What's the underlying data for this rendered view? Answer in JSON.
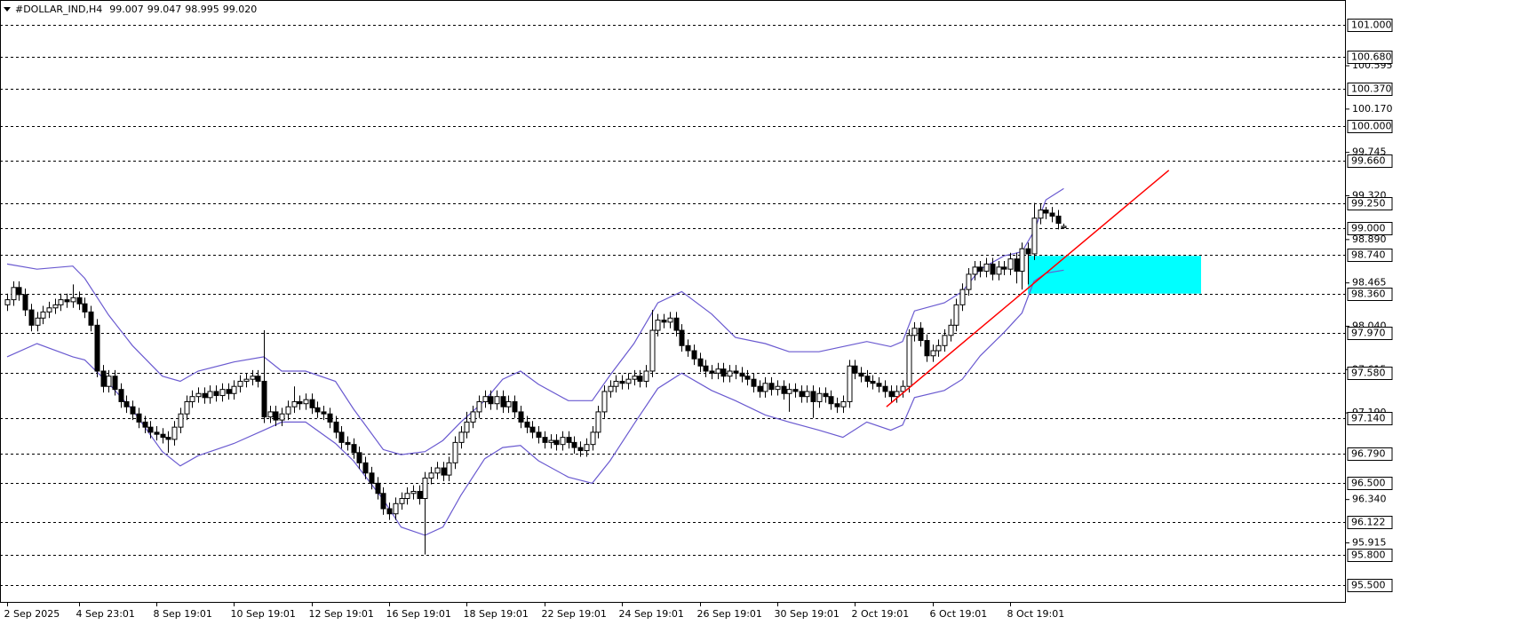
{
  "chart_data": {
    "type": "candlestick",
    "header": {
      "symbol": "#DOLLAR_IND,H4",
      "ohlc": [
        "99.007",
        "99.047",
        "98.995",
        "99.020"
      ]
    },
    "categories": [
      "2 Sep 2025",
      null,
      null,
      null,
      null,
      null,
      null,
      null,
      null,
      null,
      null,
      null,
      "4 Sep 23:01",
      null,
      null,
      null,
      null,
      null,
      null,
      null,
      null,
      null,
      null,
      null,
      null,
      "8 Sep 19:01",
      null,
      null,
      null,
      null,
      null,
      null,
      null,
      null,
      null,
      null,
      null,
      null,
      "10 Sep 19:01",
      null,
      null,
      null,
      null,
      null,
      null,
      null,
      null,
      null,
      null,
      null,
      null,
      "12 Sep 19:01",
      null,
      null,
      null,
      null,
      null,
      null,
      null,
      null,
      null,
      null,
      null,
      null,
      "16 Sep 19:01",
      null,
      null,
      null,
      null,
      null,
      null,
      null,
      null,
      null,
      null,
      null,
      null,
      "18 Sep 19:01",
      null,
      null,
      null,
      null,
      null,
      null,
      null,
      null,
      null,
      null,
      null,
      null,
      "22 Sep 19:01",
      null,
      null,
      null,
      null,
      null,
      null,
      null,
      null,
      null,
      null,
      null,
      null,
      "24 Sep 19:01",
      null,
      null,
      null,
      null,
      null,
      null,
      null,
      null,
      null,
      null,
      null,
      null,
      "26 Sep 19:01",
      null,
      null,
      null,
      null,
      null,
      null,
      null,
      null,
      null,
      null,
      null,
      null,
      "30 Sep 19:01",
      null,
      null,
      null,
      null,
      null,
      null,
      null,
      null,
      null,
      null,
      null,
      null,
      "2 Oct 19:01",
      null,
      null,
      null,
      null,
      null,
      null,
      null,
      null,
      null,
      null,
      null,
      null,
      "6 Oct 19:01",
      null,
      null,
      null,
      null,
      null,
      null,
      null,
      null,
      null,
      null,
      null,
      null,
      "8 Oct 19:01",
      null,
      null,
      null,
      null,
      null,
      null,
      null,
      null,
      null
    ],
    "open": [
      98.25,
      98.3,
      98.42,
      98.35,
      98.2,
      98.05,
      98.12,
      98.18,
      98.22,
      98.25,
      98.3,
      98.28,
      98.32,
      98.26,
      98.18,
      98.05,
      97.6,
      97.45,
      97.55,
      97.42,
      97.3,
      97.25,
      97.18,
      97.1,
      97.05,
      97.0,
      96.98,
      96.95,
      96.93,
      97.05,
      97.18,
      97.3,
      97.35,
      97.38,
      97.34,
      97.4,
      97.36,
      97.42,
      97.38,
      97.45,
      97.5,
      97.52,
      97.55,
      97.5,
      97.15,
      97.2,
      97.12,
      97.18,
      97.25,
      97.3,
      97.28,
      97.32,
      97.24,
      97.2,
      97.18,
      97.1,
      97.0,
      96.9,
      96.88,
      96.8,
      96.7,
      96.6,
      96.5,
      96.4,
      96.25,
      96.2,
      96.3,
      96.35,
      96.4,
      96.42,
      96.35,
      96.55,
      96.6,
      96.65,
      96.58,
      96.7,
      96.9,
      97.0,
      97.1,
      97.2,
      97.3,
      97.35,
      97.28,
      97.35,
      97.25,
      97.3,
      97.2,
      97.1,
      97.05,
      97.0,
      96.95,
      96.9,
      96.92,
      96.88,
      96.95,
      96.9,
      96.85,
      96.82,
      96.88,
      97.0,
      97.2,
      97.4,
      97.45,
      97.5,
      97.48,
      97.52,
      97.55,
      97.5,
      97.6,
      98.0,
      98.1,
      98.08,
      98.12,
      98.0,
      97.85,
      97.8,
      97.72,
      97.65,
      97.6,
      97.58,
      97.62,
      97.55,
      97.6,
      97.58,
      97.55,
      97.52,
      97.45,
      97.4,
      97.48,
      97.42,
      97.45,
      97.38,
      97.42,
      97.4,
      97.35,
      97.4,
      97.3,
      97.38,
      97.35,
      97.28,
      97.25,
      97.3,
      97.65,
      97.58,
      97.55,
      97.5,
      97.48,
      97.45,
      97.4,
      97.35,
      97.4,
      97.45,
      97.95,
      98.02,
      97.9,
      97.75,
      97.8,
      97.85,
      97.95,
      98.05,
      98.25,
      98.4,
      98.55,
      98.62,
      98.58,
      98.65,
      98.55,
      98.62,
      98.6,
      98.7,
      98.58,
      98.8,
      98.75,
      99.1,
      99.18,
      99.15,
      99.12,
      99.007
    ],
    "high": [
      98.36,
      98.48,
      98.48,
      98.41,
      98.26,
      98.18,
      98.24,
      98.28,
      98.31,
      98.36,
      98.36,
      98.45,
      98.38,
      98.32,
      98.24,
      98.11,
      97.66,
      97.61,
      97.61,
      97.48,
      97.36,
      97.31,
      97.24,
      97.16,
      97.11,
      97.06,
      97.04,
      97.01,
      97.11,
      97.24,
      97.36,
      97.41,
      97.44,
      97.44,
      97.46,
      97.46,
      97.48,
      97.48,
      97.51,
      97.56,
      97.58,
      97.61,
      97.61,
      98.0,
      97.26,
      97.26,
      97.24,
      97.31,
      97.45,
      97.36,
      97.38,
      97.38,
      97.3,
      97.26,
      97.24,
      97.16,
      97.06,
      96.96,
      96.94,
      96.86,
      96.76,
      96.66,
      96.56,
      96.46,
      96.31,
      96.36,
      96.41,
      96.46,
      96.48,
      96.48,
      96.61,
      96.66,
      96.71,
      96.71,
      96.76,
      96.96,
      97.06,
      97.2,
      97.26,
      97.36,
      97.41,
      97.41,
      97.41,
      97.41,
      97.36,
      97.36,
      97.26,
      97.16,
      97.11,
      97.06,
      97.01,
      96.98,
      96.98,
      97.01,
      97.01,
      96.96,
      96.91,
      96.94,
      97.06,
      97.26,
      97.46,
      97.51,
      97.56,
      97.56,
      97.58,
      97.61,
      97.61,
      97.66,
      98.2,
      98.16,
      98.16,
      98.18,
      98.18,
      98.06,
      97.91,
      97.86,
      97.78,
      97.71,
      97.66,
      97.68,
      97.68,
      97.66,
      97.66,
      97.64,
      97.61,
      97.58,
      97.51,
      97.54,
      97.54,
      97.51,
      97.51,
      97.48,
      97.48,
      97.46,
      97.46,
      97.46,
      97.44,
      97.44,
      97.41,
      97.34,
      97.36,
      97.71,
      97.71,
      97.64,
      97.61,
      97.56,
      97.54,
      97.51,
      97.46,
      97.46,
      97.51,
      98.01,
      98.08,
      98.08,
      97.96,
      97.86,
      97.91,
      98.01,
      98.11,
      98.31,
      98.46,
      98.61,
      98.68,
      98.68,
      98.71,
      98.71,
      98.68,
      98.68,
      98.76,
      98.76,
      98.86,
      98.86,
      99.25,
      99.24,
      99.21,
      99.21,
      99.18,
      99.047
    ],
    "low": [
      98.19,
      98.24,
      98.29,
      98.14,
      97.99,
      97.99,
      98.06,
      98.12,
      98.16,
      98.19,
      98.22,
      98.22,
      98.2,
      98.12,
      97.99,
      97.54,
      97.39,
      97.39,
      97.36,
      97.24,
      97.19,
      97.12,
      97.04,
      96.99,
      96.94,
      96.92,
      96.89,
      96.8,
      96.87,
      96.99,
      97.12,
      97.24,
      97.29,
      97.28,
      97.28,
      97.3,
      97.3,
      97.32,
      97.32,
      97.39,
      97.44,
      97.46,
      97.44,
      97.09,
      97.09,
      97.06,
      97.06,
      97.12,
      97.19,
      97.22,
      97.22,
      97.18,
      97.14,
      97.12,
      97.04,
      96.94,
      96.84,
      96.82,
      96.74,
      96.64,
      96.54,
      96.44,
      96.34,
      96.19,
      96.14,
      96.14,
      96.24,
      96.29,
      96.34,
      96.29,
      95.8,
      96.49,
      96.54,
      96.52,
      96.52,
      96.64,
      96.84,
      96.94,
      97.04,
      97.14,
      97.24,
      97.22,
      97.22,
      97.19,
      97.19,
      97.14,
      97.04,
      96.99,
      96.94,
      96.89,
      96.84,
      96.84,
      96.82,
      96.82,
      96.84,
      96.79,
      96.76,
      96.76,
      96.82,
      96.94,
      97.14,
      97.34,
      97.39,
      97.42,
      97.42,
      97.46,
      97.44,
      97.44,
      97.54,
      97.94,
      98.02,
      98.02,
      97.94,
      97.79,
      97.74,
      97.66,
      97.59,
      97.54,
      97.52,
      97.52,
      97.49,
      97.49,
      97.52,
      97.49,
      97.46,
      97.39,
      97.34,
      97.34,
      97.36,
      97.36,
      97.32,
      97.2,
      97.34,
      97.29,
      97.29,
      97.14,
      97.24,
      97.29,
      97.22,
      97.19,
      97.19,
      97.24,
      97.52,
      97.49,
      97.44,
      97.42,
      97.39,
      97.34,
      97.29,
      97.29,
      97.34,
      97.39,
      97.89,
      97.84,
      97.69,
      97.69,
      97.74,
      97.79,
      97.89,
      97.99,
      98.19,
      98.34,
      98.49,
      98.52,
      98.52,
      98.49,
      98.49,
      98.54,
      98.54,
      98.46,
      98.4,
      98.45,
      98.69,
      99.04,
      99.09,
      99.06,
      98.99,
      98.995
    ],
    "close": [
      98.3,
      98.42,
      98.35,
      98.2,
      98.05,
      98.12,
      98.18,
      98.22,
      98.25,
      98.3,
      98.28,
      98.32,
      98.26,
      98.18,
      98.05,
      97.6,
      97.45,
      97.55,
      97.42,
      97.3,
      97.25,
      97.18,
      97.1,
      97.05,
      97.0,
      96.98,
      96.95,
      96.93,
      97.05,
      97.18,
      97.3,
      97.35,
      97.38,
      97.34,
      97.4,
      97.36,
      97.42,
      97.38,
      97.45,
      97.5,
      97.52,
      97.55,
      97.5,
      97.15,
      97.2,
      97.12,
      97.18,
      97.25,
      97.3,
      97.28,
      97.32,
      97.24,
      97.2,
      97.18,
      97.1,
      97.0,
      96.9,
      96.88,
      96.8,
      96.7,
      96.6,
      96.5,
      96.4,
      96.25,
      96.2,
      96.3,
      96.35,
      96.4,
      96.42,
      96.35,
      96.55,
      96.6,
      96.65,
      96.58,
      96.7,
      96.9,
      97.0,
      97.1,
      97.2,
      97.3,
      97.35,
      97.28,
      97.35,
      97.25,
      97.3,
      97.2,
      97.1,
      97.05,
      97.0,
      96.95,
      96.9,
      96.92,
      96.88,
      96.95,
      96.9,
      96.85,
      96.82,
      96.88,
      97.0,
      97.2,
      97.4,
      97.45,
      97.5,
      97.48,
      97.52,
      97.55,
      97.5,
      97.6,
      98.0,
      98.1,
      98.08,
      98.12,
      98.0,
      97.85,
      97.8,
      97.72,
      97.65,
      97.6,
      97.58,
      97.62,
      97.55,
      97.6,
      97.58,
      97.55,
      97.52,
      97.45,
      97.4,
      97.48,
      97.42,
      97.45,
      97.38,
      97.42,
      97.4,
      97.35,
      97.4,
      97.3,
      97.38,
      97.35,
      97.28,
      97.25,
      97.3,
      97.65,
      97.58,
      97.55,
      97.5,
      97.48,
      97.45,
      97.4,
      97.35,
      97.4,
      97.45,
      97.95,
      98.02,
      97.9,
      97.75,
      97.8,
      97.85,
      97.95,
      98.05,
      98.25,
      98.4,
      98.55,
      98.62,
      98.58,
      98.65,
      98.55,
      98.62,
      98.6,
      98.7,
      98.58,
      98.8,
      98.75,
      99.1,
      99.18,
      99.15,
      99.12,
      99.05,
      99.02
    ],
    "up_color": "#ffffff",
    "down_color": "#000000",
    "ylim": [
      95.327,
      101.24
    ],
    "yticks": [
      100.595,
      {
        "value": 100.17,
        "label": "100.170"
      },
      99.745,
      {
        "value": 99.32,
        "label": "99.320"
      },
      {
        "value": 98.89,
        "label": "98.890"
      },
      98.465,
      {
        "value": 98.04,
        "label": "98.040"
      },
      97.615,
      {
        "value": 97.19,
        "label": "97.190"
      },
      {
        "value": 96.34,
        "label": "96.340"
      },
      95.915
    ],
    "levels": [
      {
        "value": 101,
        "label": "101.000"
      },
      {
        "value": 100.68,
        "label": "100.680"
      },
      {
        "value": 100.37,
        "label": "100.370"
      },
      {
        "value": 100,
        "label": "100.000"
      },
      {
        "value": 99.66,
        "label": "99.660"
      },
      {
        "value": 99.25,
        "label": "99.250"
      },
      {
        "value": 99,
        "label": "99.000"
      },
      {
        "value": 98.74,
        "label": "98.740"
      },
      {
        "value": 98.36,
        "label": "98.360"
      },
      {
        "value": 97.97,
        "label": "97.970"
      },
      {
        "value": 97.58,
        "label": "97.580"
      },
      {
        "value": 97.14,
        "label": "97.140"
      },
      {
        "value": 96.79,
        "label": "96.790"
      },
      {
        "value": 96.5,
        "label": "96.500"
      },
      96.122,
      {
        "value": 95.8,
        "label": "95.800"
      },
      {
        "value": 95.5,
        "label": "95.500"
      }
    ],
    "bands": {
      "color": "#6a5ad0",
      "x": [
        0,
        5,
        11,
        13,
        17,
        21,
        26,
        29,
        32,
        38,
        43,
        46,
        50,
        55,
        58,
        63,
        66,
        70,
        73,
        76,
        80,
        83,
        86,
        89,
        94,
        98,
        101,
        105,
        109,
        113,
        118,
        122,
        127,
        131,
        136,
        140,
        144,
        148,
        150,
        152,
        157,
        160,
        163,
        167,
        170,
        172,
        174,
        177
      ],
      "upper": [
        98.65,
        98.6,
        98.63,
        98.51,
        98.15,
        97.85,
        97.55,
        97.5,
        97.6,
        97.69,
        97.74,
        97.6,
        97.6,
        97.5,
        97.23,
        96.83,
        96.78,
        96.81,
        96.92,
        97.1,
        97.31,
        97.52,
        97.6,
        97.47,
        97.31,
        97.31,
        97.56,
        97.87,
        98.27,
        98.38,
        98.16,
        97.93,
        97.87,
        97.79,
        97.79,
        97.84,
        97.89,
        97.84,
        97.89,
        98.19,
        98.27,
        98.38,
        98.6,
        98.73,
        98.77,
        98.97,
        99.28,
        99.39
      ],
      "lower": [
        97.74,
        97.87,
        97.74,
        97.71,
        97.48,
        97.22,
        96.81,
        96.67,
        96.77,
        96.89,
        97.02,
        97.1,
        97.1,
        96.89,
        96.72,
        96.34,
        96.07,
        95.99,
        96.07,
        96.38,
        96.74,
        96.85,
        96.87,
        96.72,
        96.56,
        96.5,
        96.72,
        97.08,
        97.43,
        97.58,
        97.41,
        97.31,
        97.17,
        97.1,
        97.02,
        96.95,
        97.1,
        97.02,
        97.07,
        97.34,
        97.41,
        97.52,
        97.75,
        97.98,
        98.17,
        98.48,
        98.56,
        98.59
      ]
    },
    "trendline": {
      "x": [
        147.3,
        194.6
      ],
      "y": [
        97.25,
        99.57
      ],
      "color": "#ff0000"
    },
    "zone": {
      "x": [
        171,
        200
      ],
      "y": [
        98.36,
        98.73
      ],
      "color": "#00ffff"
    }
  }
}
